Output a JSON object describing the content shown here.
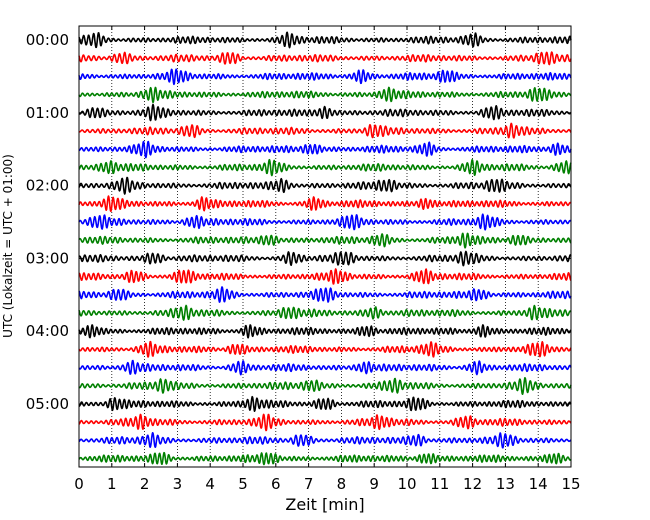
{
  "chart_data": {
    "type": "line",
    "title": "",
    "xlabel": "Zeit  [min]",
    "ylabel": "UTC (Lokalzeit = UTC + 01:00)",
    "xlim": [
      0,
      15
    ],
    "x_ticks": [
      "0",
      "1",
      "2",
      "3",
      "4",
      "5",
      "6",
      "7",
      "8",
      "9",
      "10",
      "11",
      "12",
      "13",
      "14",
      "15"
    ],
    "y_ticks": [
      "00:00",
      "01:00",
      "02:00",
      "03:00",
      "04:00",
      "05:00"
    ],
    "grid": {
      "x": true,
      "y": false,
      "style": "dotted"
    },
    "trace_interval_minutes": 15,
    "trace_colors": [
      "#000000",
      "#ff0000",
      "#0000ff",
      "#008000"
    ],
    "traces": [
      {
        "start": "00:00",
        "color": "#000000",
        "bursts": [
          0.5,
          6.4,
          12.0
        ]
      },
      {
        "start": "00:15",
        "color": "#ff0000",
        "bursts": [
          1.3,
          4.6,
          14.2
        ]
      },
      {
        "start": "00:30",
        "color": "#0000ff",
        "bursts": [
          3.0,
          8.6,
          11.2
        ]
      },
      {
        "start": "00:45",
        "color": "#008000",
        "bursts": [
          2.2,
          9.4,
          14.0
        ]
      },
      {
        "start": "01:00",
        "color": "#000000",
        "bursts": [
          0.5,
          2.3,
          7.5,
          12.6
        ]
      },
      {
        "start": "01:15",
        "color": "#ff0000",
        "bursts": [
          3.4,
          9.0,
          13.2
        ]
      },
      {
        "start": "01:30",
        "color": "#0000ff",
        "bursts": [
          2.0,
          7.1,
          10.6,
          14.6
        ]
      },
      {
        "start": "01:45",
        "color": "#008000",
        "bursts": [
          0.9,
          5.9,
          12.0,
          14.8
        ]
      },
      {
        "start": "02:00",
        "color": "#000000",
        "bursts": [
          1.4,
          6.2,
          9.4,
          12.7
        ]
      },
      {
        "start": "02:15",
        "color": "#ff0000",
        "bursts": [
          1.0,
          3.8,
          7.2,
          10.6
        ]
      },
      {
        "start": "02:30",
        "color": "#0000ff",
        "bursts": [
          0.6,
          3.5,
          8.3,
          12.4
        ]
      },
      {
        "start": "02:45",
        "color": "#008000",
        "bursts": [
          5.8,
          9.2,
          11.8,
          13.4
        ]
      },
      {
        "start": "03:00",
        "color": "#000000",
        "bursts": [
          2.3,
          6.5,
          8.1,
          11.8
        ]
      },
      {
        "start": "03:15",
        "color": "#ff0000",
        "bursts": [
          1.7,
          3.2,
          7.9,
          10.5
        ]
      },
      {
        "start": "03:30",
        "color": "#0000ff",
        "bursts": [
          1.2,
          4.4,
          7.5,
          12.2
        ]
      },
      {
        "start": "03:45",
        "color": "#008000",
        "bursts": [
          3.2,
          6.4,
          9.0,
          13.9
        ]
      },
      {
        "start": "04:00",
        "color": "#000000",
        "bursts": [
          0.4,
          5.2,
          8.8,
          12.3
        ]
      },
      {
        "start": "04:15",
        "color": "#ff0000",
        "bursts": [
          2.1,
          4.8,
          10.7,
          14.0
        ]
      },
      {
        "start": "04:30",
        "color": "#0000ff",
        "bursts": [
          1.6,
          4.9,
          8.7,
          12.1
        ]
      },
      {
        "start": "04:45",
        "color": "#008000",
        "bursts": [
          2.6,
          7.1,
          9.6,
          13.6
        ]
      },
      {
        "start": "05:00",
        "color": "#000000",
        "bursts": [
          1.1,
          5.3,
          7.5,
          10.3
        ]
      },
      {
        "start": "05:15",
        "color": "#ff0000",
        "bursts": [
          1.9,
          5.7,
          9.2,
          11.8
        ]
      },
      {
        "start": "05:30",
        "color": "#0000ff",
        "bursts": [
          2.2,
          6.8,
          10.3,
          13.0
        ]
      },
      {
        "start": "05:45",
        "color": "#008000",
        "bursts": [
          2.5,
          5.8,
          10.6,
          14.5
        ]
      }
    ]
  }
}
